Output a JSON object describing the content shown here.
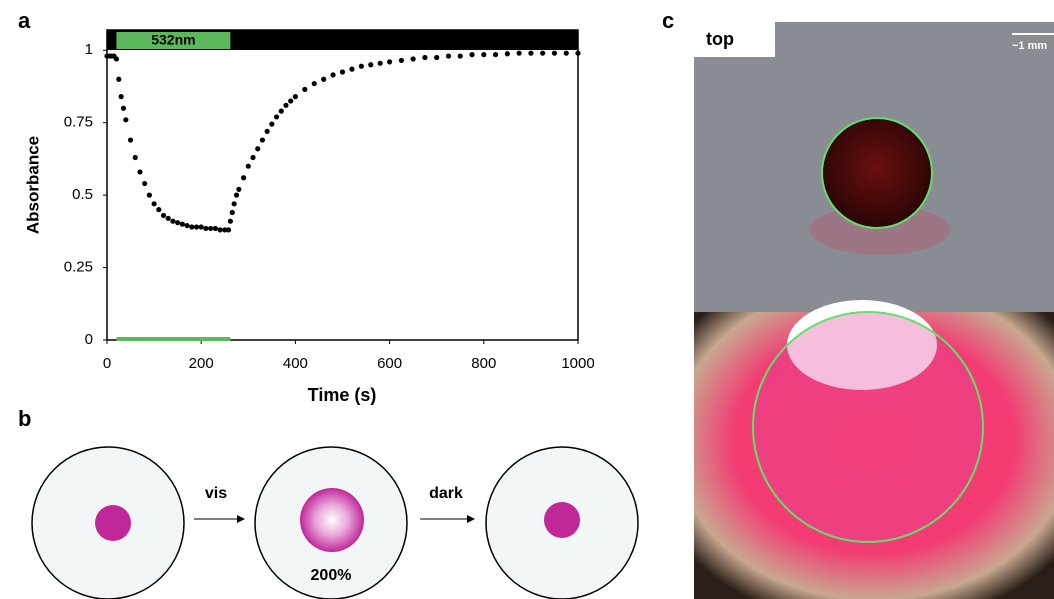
{
  "chart_data": {
    "type": "scatter",
    "x_label": "Time (s)",
    "y_label": "Absorbance",
    "x": [
      0,
      5,
      10,
      15,
      20,
      25,
      30,
      35,
      40,
      50,
      60,
      70,
      80,
      90,
      100,
      110,
      120,
      130,
      140,
      150,
      160,
      170,
      180,
      190,
      200,
      210,
      220,
      230,
      240,
      250,
      258,
      262,
      266,
      270,
      275,
      280,
      290,
      300,
      310,
      320,
      330,
      340,
      350,
      360,
      370,
      380,
      390,
      400,
      420,
      440,
      460,
      480,
      500,
      520,
      540,
      560,
      580,
      600,
      625,
      650,
      675,
      700,
      725,
      750,
      775,
      800,
      825,
      850,
      875,
      900,
      925,
      950,
      975,
      1000
    ],
    "values": [
      0.98,
      0.98,
      0.98,
      0.98,
      0.97,
      0.9,
      0.84,
      0.8,
      0.76,
      0.69,
      0.63,
      0.58,
      0.54,
      0.5,
      0.47,
      0.45,
      0.43,
      0.42,
      0.41,
      0.405,
      0.4,
      0.395,
      0.39,
      0.39,
      0.39,
      0.385,
      0.385,
      0.385,
      0.38,
      0.38,
      0.38,
      0.41,
      0.44,
      0.47,
      0.5,
      0.52,
      0.56,
      0.6,
      0.63,
      0.66,
      0.69,
      0.72,
      0.745,
      0.77,
      0.79,
      0.81,
      0.825,
      0.84,
      0.865,
      0.885,
      0.9,
      0.915,
      0.925,
      0.935,
      0.945,
      0.95,
      0.955,
      0.96,
      0.965,
      0.97,
      0.975,
      0.975,
      0.98,
      0.98,
      0.985,
      0.985,
      0.985,
      0.988,
      0.99,
      0.99,
      0.99,
      0.99,
      0.99,
      0.99
    ],
    "color": "#000000",
    "xlim": [
      0,
      1000
    ],
    "xticks": [
      0,
      200,
      400,
      600,
      800,
      1000
    ],
    "ylim": [
      0,
      1.07
    ],
    "yticks": [
      0,
      0.25,
      0.5,
      0.75,
      1
    ],
    "light_on": {
      "label": "532nm",
      "range": [
        20,
        262
      ],
      "color": "#5cb85c"
    }
  },
  "panel_labels": [
    "a",
    "b",
    "c"
  ],
  "diagram": {
    "steps": [
      "vis",
      "dark"
    ],
    "expansion_label": "200%"
  },
  "photo": {
    "label": "top",
    "scale_bar": "~1 mm"
  }
}
